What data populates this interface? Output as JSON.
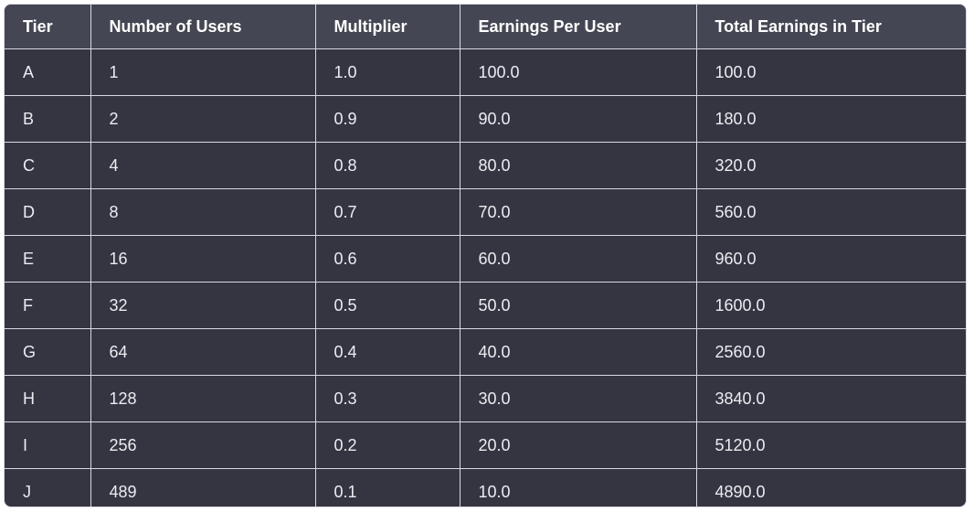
{
  "table": {
    "columns": [
      "Tier",
      "Number of Users",
      "Multiplier",
      "Earnings Per User",
      "Total Earnings in Tier"
    ],
    "rows": [
      [
        "A",
        "1",
        "1.0",
        "100.0",
        "100.0"
      ],
      [
        "B",
        "2",
        "0.9",
        "90.0",
        "180.0"
      ],
      [
        "C",
        "4",
        "0.8",
        "80.0",
        "320.0"
      ],
      [
        "D",
        "8",
        "0.7",
        "70.0",
        "560.0"
      ],
      [
        "E",
        "16",
        "0.6",
        "60.0",
        "960.0"
      ],
      [
        "F",
        "32",
        "0.5",
        "50.0",
        "1600.0"
      ],
      [
        "G",
        "64",
        "0.4",
        "40.0",
        "2560.0"
      ],
      [
        "H",
        "128",
        "0.3",
        "30.0",
        "3840.0"
      ],
      [
        "I",
        "256",
        "0.2",
        "20.0",
        "5120.0"
      ],
      [
        "J",
        "489",
        "0.1",
        "10.0",
        "4890.0"
      ]
    ]
  },
  "colors": {
    "background": "#343541",
    "header_background": "#444654",
    "border": "#d9d9e3",
    "text": "#ececf1"
  }
}
